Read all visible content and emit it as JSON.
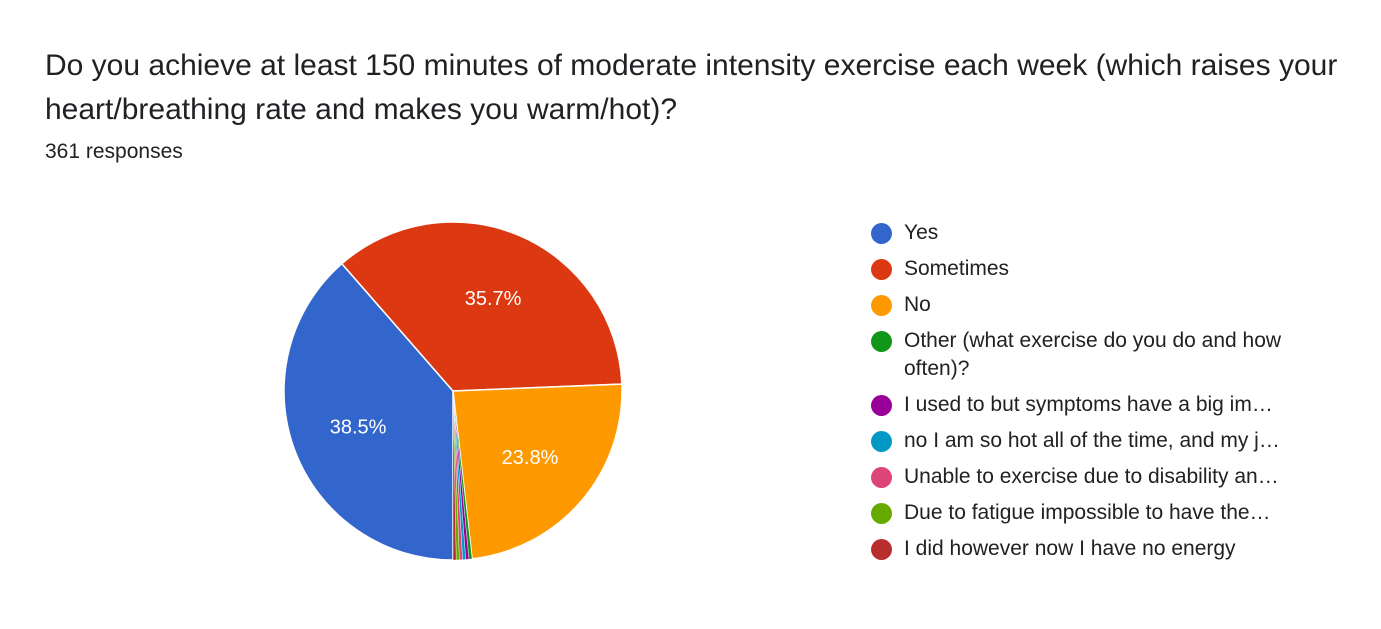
{
  "question": {
    "title": "Do you achieve at least 150 minutes of moderate intensity exercise each week (which raises your heart/breathing rate and makes you warm/hot)?",
    "responses": "361 responses"
  },
  "chart_data": {
    "type": "pie",
    "title": "Do you achieve at least 150 minutes of moderate intensity exercise each week (which raises your heart/breathing rate and makes you warm/hot)?",
    "start_angle_deg": 90,
    "direction": "clockwise",
    "legend_position": "right",
    "slices": [
      {
        "label": "Yes",
        "value": 38.5,
        "display": "38.5%",
        "color": "#3366cc"
      },
      {
        "label": "Sometimes",
        "value": 35.7,
        "display": "35.7%",
        "color": "#dc3912"
      },
      {
        "label": "No",
        "value": 23.8,
        "display": "23.8%",
        "color": "#ff9900"
      },
      {
        "label": "Other (what exercise do you do and how often)?",
        "value": 0.3,
        "display": "",
        "color": "#109618"
      },
      {
        "label": "I used to but symptoms have a big im…",
        "value": 0.3,
        "display": "",
        "color": "#990099"
      },
      {
        "label": "no I am so hot all of the time, and my j…",
        "value": 0.3,
        "display": "",
        "color": "#0099c6"
      },
      {
        "label": "Unable to exercise due to disability an…",
        "value": 0.3,
        "display": "",
        "color": "#dd4477"
      },
      {
        "label": "Due to fatigue impossible to have the…",
        "value": 0.3,
        "display": "",
        "color": "#66aa00"
      },
      {
        "label": "I did however now I have no energy",
        "value": 0.3,
        "display": "",
        "color": "#b82e2e"
      }
    ]
  }
}
